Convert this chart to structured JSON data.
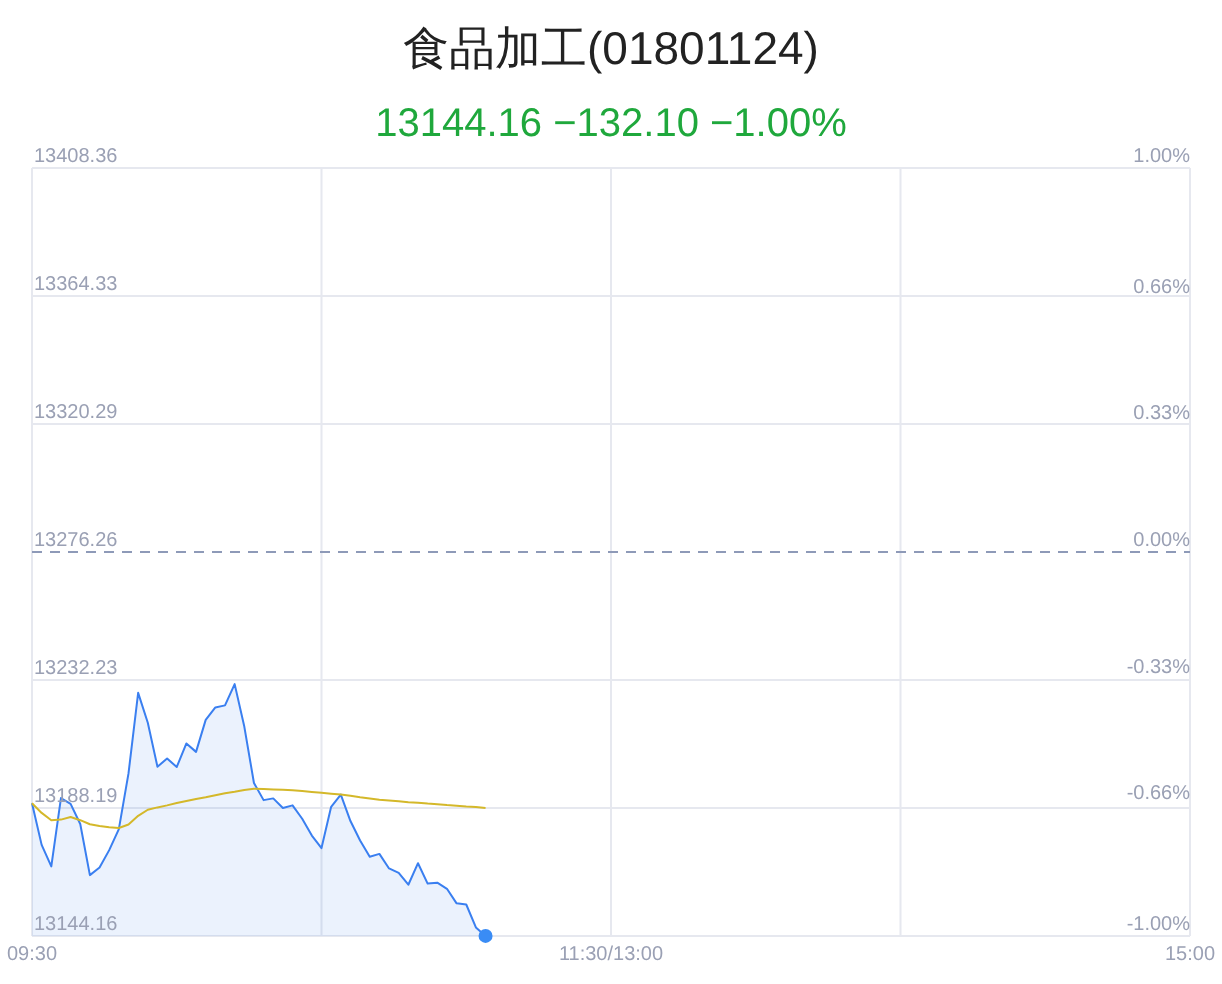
{
  "chart_data": {
    "type": "line",
    "title": "食品加工(01801124)",
    "subtitle": "13144.16 −132.10 −1.00%",
    "categories": [
      "09:30",
      null,
      null,
      null,
      null,
      null,
      null,
      null,
      null,
      null,
      null,
      null,
      null,
      null,
      null,
      null,
      null,
      null,
      null,
      null,
      null,
      null,
      null,
      null,
      null,
      null,
      null,
      null,
      null,
      null,
      null,
      null,
      null,
      null,
      null,
      null,
      null,
      null,
      null,
      null,
      null,
      null,
      null,
      null,
      null,
      null,
      null,
      null,
      null,
      null,
      null,
      null,
      null,
      null,
      null,
      null,
      null,
      null,
      null,
      null,
      "11:30/13:00",
      null,
      null,
      null,
      null,
      null,
      null,
      null,
      null,
      null,
      null,
      null,
      null,
      null,
      null,
      null,
      null,
      null,
      null,
      null,
      null,
      null,
      null,
      null,
      null,
      null,
      null,
      null,
      null,
      null,
      null,
      null,
      null,
      null,
      null,
      null,
      null,
      null,
      null,
      null,
      null,
      null,
      null,
      null,
      null,
      null,
      null,
      null,
      null,
      null,
      null,
      null,
      null,
      null,
      null,
      null,
      null,
      null,
      null,
      null,
      "15:00"
    ],
    "ylim": [
      13144.16,
      13408.36
    ],
    "yticks": [
      13144.16,
      13188.19,
      13232.23,
      13276.26,
      13320.29,
      13364.33,
      13408.36
    ],
    "y2lim": [
      -1,
      1
    ],
    "y2ticks": [
      {
        "value": -1,
        "label": "-1.00%"
      },
      {
        "value": -0.66,
        "label": "-0.66%"
      },
      {
        "value": -0.33,
        "label": "-0.33%"
      },
      {
        "value": 0,
        "label": "0.00%"
      },
      {
        "value": 0.33,
        "label": "0.33%"
      },
      {
        "value": 0.66,
        "label": "0.66%"
      },
      {
        "value": 1,
        "label": "1.00%"
      }
    ],
    "grid": true,
    "ref_lines": [
      {
        "axis": "y",
        "value": 13276.26,
        "color": "#8e9ab8",
        "line_style": "dashed"
      }
    ],
    "series": [
      {
        "type": "area",
        "color": "#3a7ff0",
        "values": [
          13189.8,
          13175.5,
          13168.1,
          13191.6,
          13189.6,
          13182.7,
          13165.1,
          13167.7,
          13173.7,
          13180.9,
          13200.1,
          13227.8,
          13217.5,
          13202.4,
          13205.2,
          13202.3,
          13210.4,
          13207.5,
          13218.5,
          13222.8,
          13223.5,
          13230.8,
          13216.2,
          13196.8,
          13190.9,
          13191.5,
          13188.2,
          13189.1,
          13184.5,
          13178.7,
          13174.4,
          13188.6,
          13192.8,
          13183.7,
          13177.0,
          13171.4,
          13172.4,
          13167.4,
          13165.9,
          13161.8,
          13169.2,
          13162.2,
          13162.5,
          13160.4,
          13155.4,
          13155.0,
          13147.1,
          13144.2,
          null,
          null,
          null,
          null,
          null,
          null,
          null,
          null,
          null,
          null,
          null,
          null,
          null,
          null,
          null,
          null,
          null,
          null,
          null,
          null,
          null,
          null,
          null,
          null,
          null,
          null,
          null,
          null,
          null,
          null,
          null,
          null,
          null,
          null,
          null,
          null,
          null,
          null,
          null,
          null,
          null,
          null,
          null,
          null,
          null,
          null,
          null,
          null,
          null,
          null,
          null,
          null,
          null,
          null,
          null,
          null,
          null,
          null,
          null,
          null,
          null,
          null,
          null,
          null,
          null,
          null,
          null,
          null,
          null,
          null,
          null,
          null,
          null
        ]
      },
      {
        "type": "line",
        "color": "#d4b82a",
        "values": [
          13189.8,
          13186.5,
          13184.0,
          13184.2,
          13185.1,
          13184.0,
          13182.6,
          13182.0,
          13181.6,
          13181.3,
          13182.5,
          13185.5,
          13187.6,
          13188.4,
          13189.1,
          13189.9,
          13190.6,
          13191.3,
          13191.9,
          13192.6,
          13193.3,
          13193.8,
          13194.4,
          13194.8,
          13194.7,
          13194.6,
          13194.5,
          13194.3,
          13194.0,
          13193.7,
          13193.4,
          13193.1,
          13192.8,
          13192.4,
          13191.9,
          13191.5,
          13191.0,
          13190.8,
          13190.5,
          13190.2,
          13190.0,
          13189.7,
          13189.5,
          13189.2,
          13189.0,
          13188.7,
          13188.5,
          13188.2,
          null,
          null,
          null,
          null,
          null,
          null,
          null,
          null,
          null,
          null,
          null,
          null,
          null,
          null,
          null,
          null,
          null,
          null,
          null,
          null,
          null,
          null,
          null,
          null,
          null,
          null,
          null,
          null,
          null,
          null,
          null,
          null,
          null,
          null,
          null,
          null,
          null,
          null,
          null,
          null,
          null,
          null,
          null,
          null,
          null,
          null,
          null,
          null,
          null,
          null,
          null,
          null,
          null,
          null,
          null,
          null,
          null,
          null,
          null,
          null,
          null,
          null,
          null,
          null,
          null,
          null,
          null,
          null,
          null,
          null,
          null,
          null,
          null
        ]
      },
      {
        "type": "scatter",
        "color": "#3a8cf5",
        "marker": "circle",
        "values": [
          null,
          null,
          null,
          null,
          null,
          null,
          null,
          null,
          null,
          null,
          null,
          null,
          null,
          null,
          null,
          null,
          null,
          null,
          null,
          null,
          null,
          null,
          null,
          null,
          null,
          null,
          null,
          null,
          null,
          null,
          null,
          null,
          null,
          null,
          null,
          null,
          null,
          null,
          null,
          null,
          null,
          null,
          null,
          null,
          null,
          null,
          null,
          13144.2,
          null,
          null,
          null,
          null,
          null,
          null,
          null,
          null,
          null,
          null,
          null,
          null,
          null,
          null,
          null,
          null,
          null,
          null,
          null,
          null,
          null,
          null,
          null,
          null,
          null,
          null,
          null,
          null,
          null,
          null,
          null,
          null,
          null,
          null,
          null,
          null,
          null,
          null,
          null,
          null,
          null,
          null,
          null,
          null,
          null,
          null,
          null,
          null,
          null,
          null,
          null,
          null,
          null,
          null,
          null,
          null,
          null,
          null,
          null,
          null,
          null,
          null,
          null,
          null,
          null,
          null,
          null,
          null,
          null,
          null,
          null,
          null,
          null
        ]
      }
    ]
  }
}
